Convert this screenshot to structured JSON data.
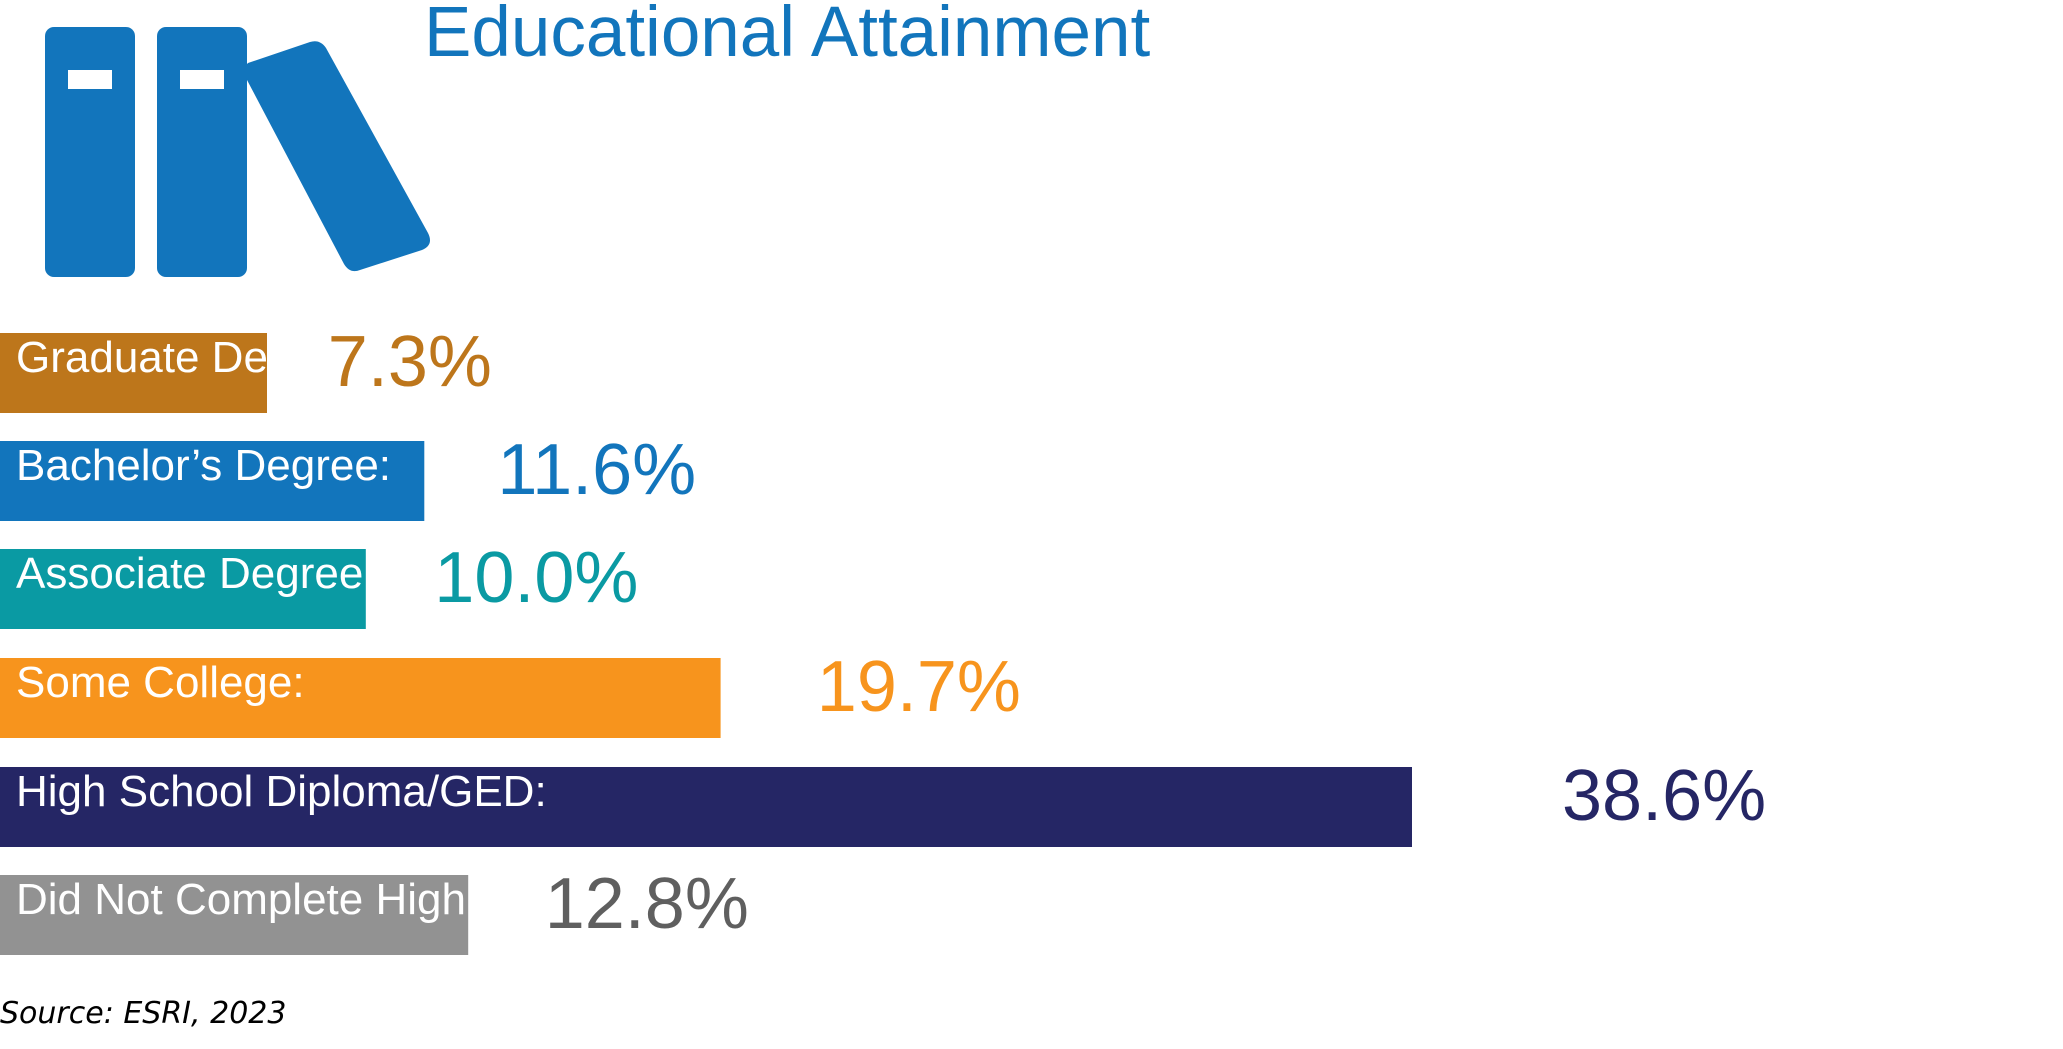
{
  "chart_data": {
    "type": "bar",
    "orientation": "horizontal",
    "title": "Educational Attainment",
    "categories": [
      "Graduate Degree:",
      "Bachelor’s Degree:",
      "Associate Degree:",
      "Some College:",
      "High School Diploma/GED:",
      "Did Not Complete High School:"
    ],
    "values": [
      7.3,
      11.6,
      10.0,
      19.7,
      38.6,
      12.8
    ],
    "value_labels": [
      "7.3%",
      "11.6%",
      "10.0%",
      "19.7%",
      "38.6%",
      "12.8%"
    ],
    "colors": [
      "#BD761B",
      "#1275BC",
      "#0A9AA3",
      "#F7941D",
      "#252665",
      "#929292"
    ],
    "label_colors": [
      "#BD761B",
      "#1275BC",
      "#0A9AA3",
      "#F7941D",
      "#252665",
      "#5F5F5F"
    ],
    "grid": false,
    "legend": "none",
    "source": "Source: ESRI, 2023"
  },
  "icon": {
    "name": "books-icon",
    "color": "#1275BC"
  }
}
